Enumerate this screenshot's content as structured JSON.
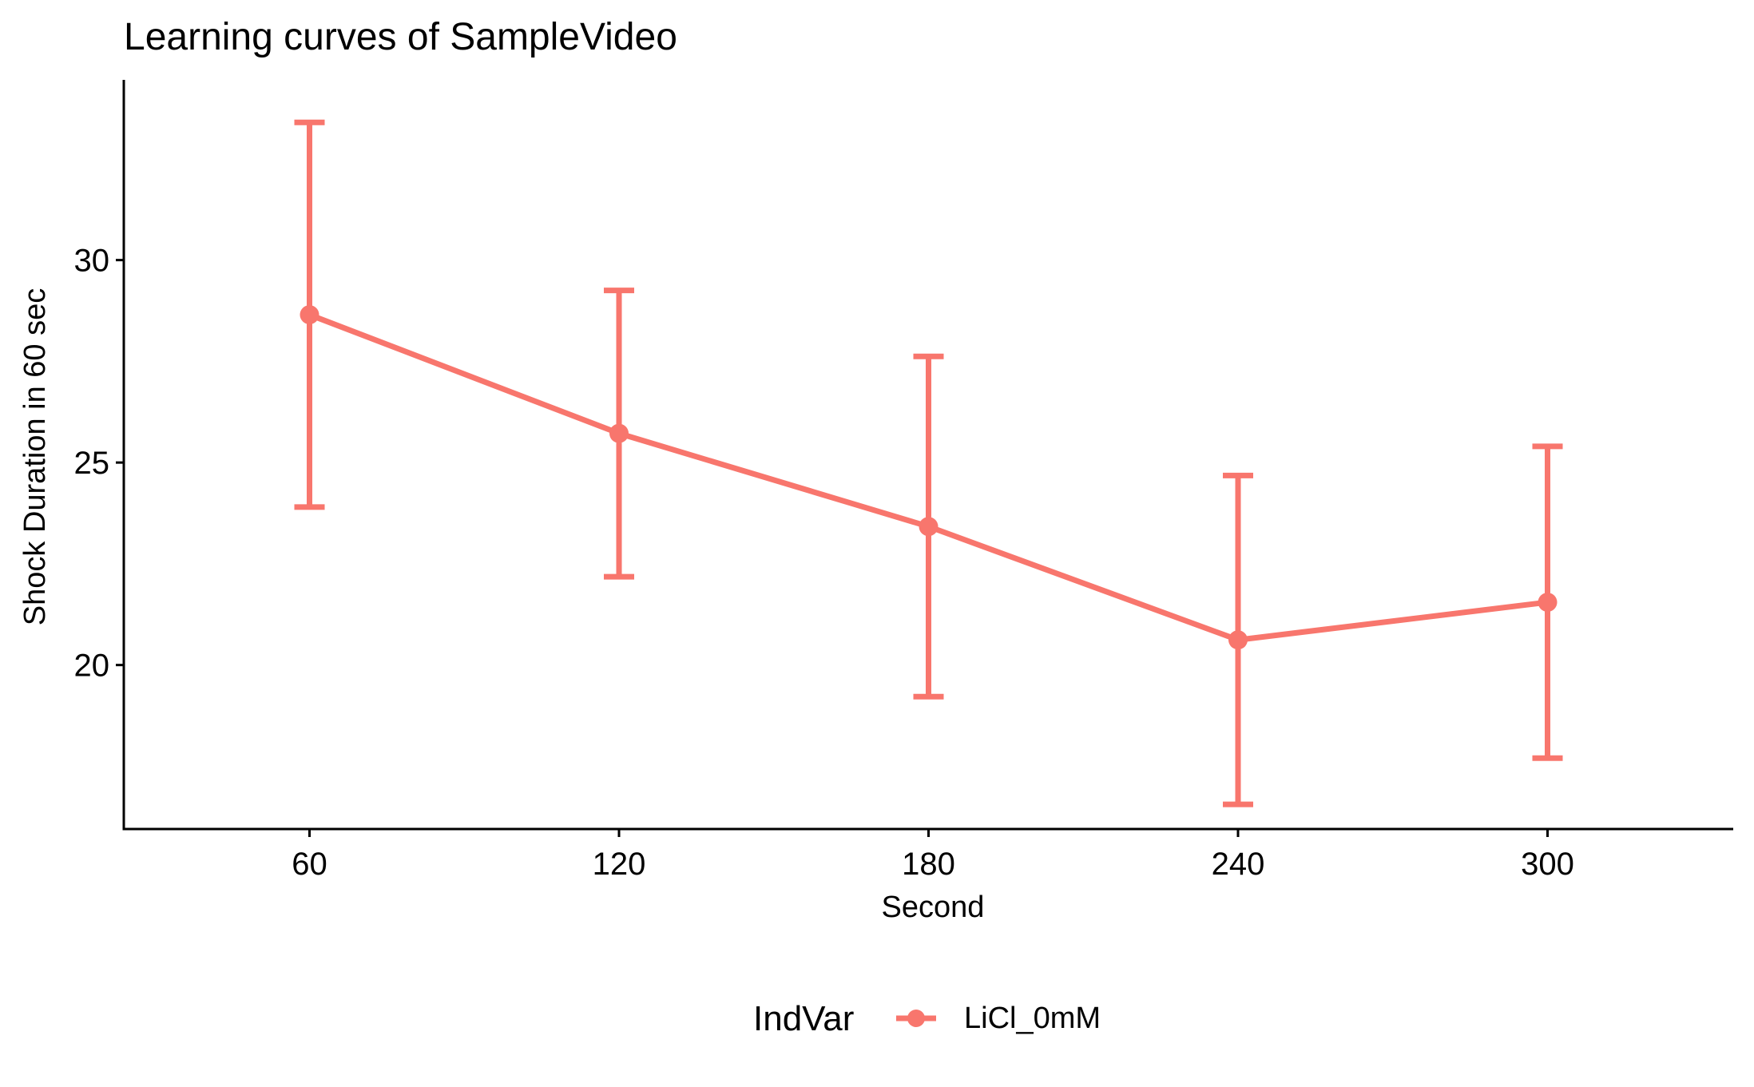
{
  "chart_data": {
    "type": "line",
    "title": "Learning curves of SampleVideo",
    "xlabel": "Second",
    "ylabel": "Shock Duration in 60 sec",
    "x": [
      60,
      120,
      180,
      240,
      300
    ],
    "x_ticks": [
      "60",
      "120",
      "180",
      "240",
      "300"
    ],
    "y_ticks": [
      "20",
      "25",
      "30"
    ],
    "y_tick_values": [
      20,
      25,
      30
    ],
    "xlim": [
      24,
      336
    ],
    "ylim": [
      15.95,
      34.45
    ],
    "grid": false,
    "legend": {
      "title": "IndVar",
      "position": "bottom"
    },
    "series": [
      {
        "name": "LiCl_0mM",
        "color": "#F8766D",
        "values": [
          28.65,
          25.72,
          23.42,
          20.62,
          21.55
        ],
        "error_upper": [
          33.4,
          29.25,
          27.62,
          24.68,
          25.4
        ],
        "error_lower": [
          23.9,
          22.18,
          19.22,
          16.56,
          17.7
        ]
      }
    ]
  }
}
